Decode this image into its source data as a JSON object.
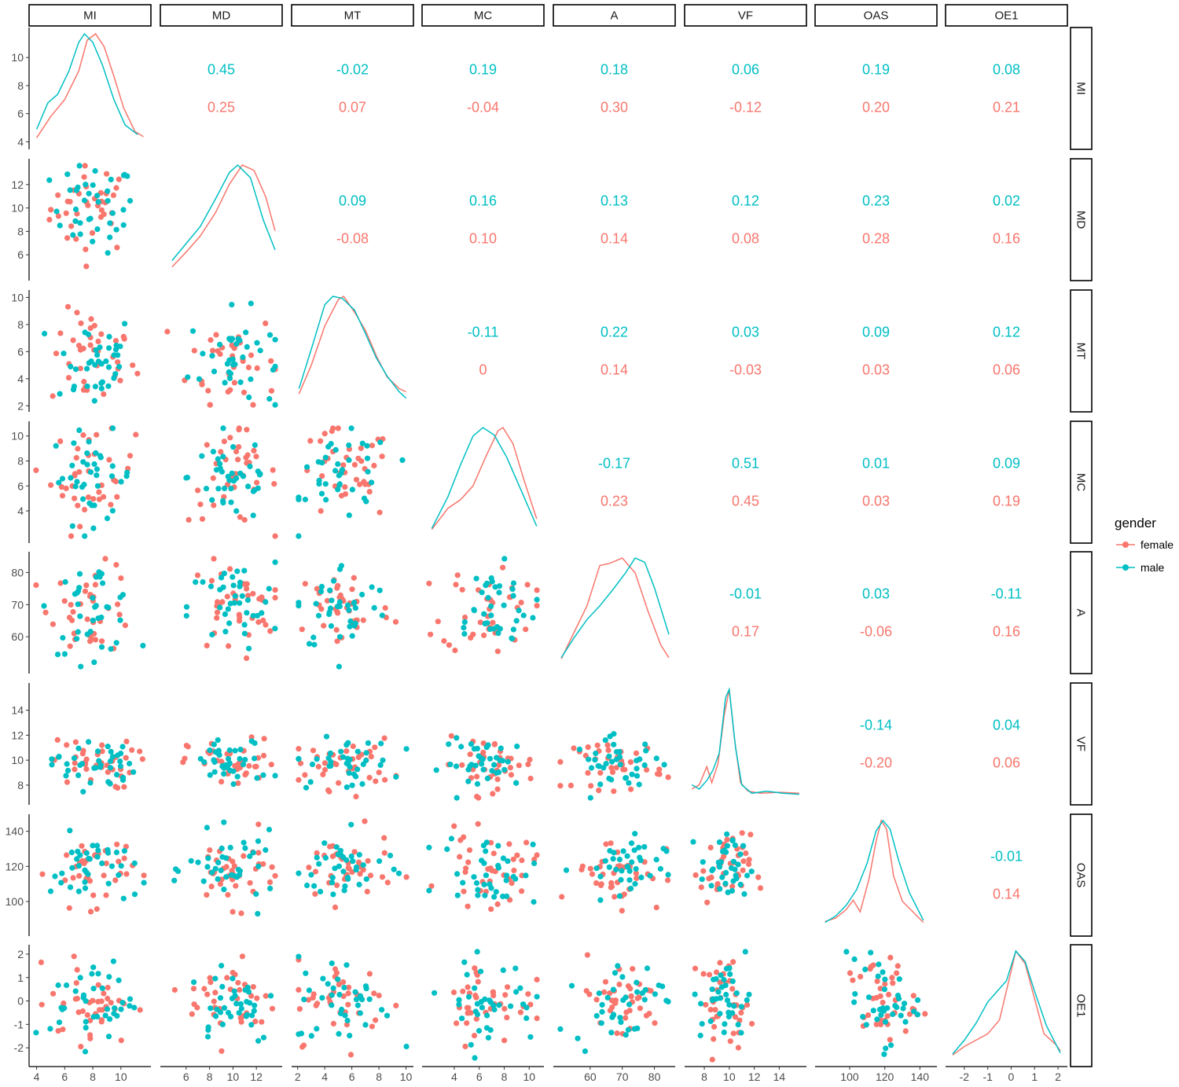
{
  "chart_data": {
    "type": "scatter",
    "variables": [
      "MI",
      "MD",
      "MT",
      "MC",
      "A",
      "VF",
      "OAS",
      "OE1"
    ],
    "groups": [
      {
        "name": "female",
        "color": "#F8766D"
      },
      {
        "name": "male",
        "color": "#00BFC4"
      }
    ],
    "legend": {
      "title": "gender",
      "labels": [
        "female",
        "male"
      ],
      "placement": "right"
    },
    "axes": {
      "MI": {
        "range": [
          3.8,
          11.8
        ],
        "ticks": [
          4,
          6,
          8,
          10
        ],
        "tick_labels": [
          "4",
          "6",
          "8",
          "10"
        ],
        "y_ticks": [
          4,
          6,
          8,
          10
        ],
        "y_tick_labels": [
          "4",
          "6",
          "8",
          "10"
        ]
      },
      "MD": {
        "range": [
          4.2,
          13.8
        ],
        "ticks": [
          6,
          8,
          10,
          12
        ],
        "tick_labels": [
          "6",
          "8",
          "10",
          "12"
        ],
        "y_ticks": [
          6,
          8,
          10,
          12
        ],
        "y_tick_labels": [
          "6",
          "8",
          "10",
          "12"
        ]
      },
      "MT": {
        "range": [
          1.9,
          10.2
        ],
        "ticks": [
          2,
          4,
          6,
          8,
          10
        ],
        "tick_labels": [
          "2",
          "4",
          "6",
          "8",
          "10"
        ],
        "y_ticks": [
          2,
          4,
          6,
          8,
          10
        ],
        "y_tick_labels": [
          "2",
          "4",
          "6",
          "8",
          "10"
        ]
      },
      "MC": {
        "range": [
          1.8,
          10.8
        ],
        "ticks": [
          4,
          6,
          8,
          10
        ],
        "tick_labels": [
          "4",
          "6",
          "8",
          "10"
        ],
        "y_ticks": [
          4,
          6,
          8,
          10
        ],
        "y_tick_labels": [
          "4",
          "6",
          "8",
          "10"
        ]
      },
      "A": {
        "range": [
          50,
          85
        ],
        "ticks": [
          60,
          70,
          80
        ],
        "tick_labels": [
          "60",
          "70",
          "80"
        ],
        "y_ticks": [
          60,
          70,
          80
        ],
        "y_tick_labels": [
          "60",
          "70",
          "80"
        ]
      },
      "VF": {
        "range": [
          6.8,
          15.8
        ],
        "ticks": [
          8,
          10,
          12,
          14
        ],
        "tick_labels": [
          "8",
          "10",
          "12",
          "14"
        ],
        "y_ticks": [
          8,
          10,
          12,
          14
        ],
        "y_tick_labels": [
          "8",
          "10",
          "12",
          "14"
        ]
      },
      "OAS": {
        "range": [
          83,
          147
        ],
        "ticks": [
          100,
          120,
          140
        ],
        "tick_labels": [
          "100",
          "120",
          "140"
        ],
        "y_ticks": [
          100,
          120,
          140
        ],
        "y_tick_labels": [
          "100",
          "120",
          "140"
        ]
      },
      "OE1": {
        "range": [
          -2.6,
          2.2
        ],
        "ticks": [
          -2,
          -1,
          0,
          1,
          2
        ],
        "tick_labels": [
          "-2",
          "-1",
          "0",
          "1",
          "2"
        ],
        "y_ticks": [
          -2,
          -1,
          0,
          1,
          2
        ],
        "y_tick_labels": [
          "-2",
          "-1",
          "0",
          "1",
          "2"
        ]
      }
    },
    "correlations": [
      {
        "row": "MI",
        "col": "MD",
        "male": "0.45",
        "female": "0.25"
      },
      {
        "row": "MI",
        "col": "MT",
        "male": "-0.02",
        "female": "0.07"
      },
      {
        "row": "MI",
        "col": "MC",
        "male": "0.19",
        "female": "-0.04"
      },
      {
        "row": "MI",
        "col": "A",
        "male": "0.18",
        "female": "0.30"
      },
      {
        "row": "MI",
        "col": "VF",
        "male": "0.06",
        "female": "-0.12"
      },
      {
        "row": "MI",
        "col": "OAS",
        "male": "0.19",
        "female": "0.20"
      },
      {
        "row": "MI",
        "col": "OE1",
        "male": "0.08",
        "female": "0.21"
      },
      {
        "row": "MD",
        "col": "MT",
        "male": "0.09",
        "female": "-0.08"
      },
      {
        "row": "MD",
        "col": "MC",
        "male": "0.16",
        "female": "0.10"
      },
      {
        "row": "MD",
        "col": "A",
        "male": "0.13",
        "female": "0.14"
      },
      {
        "row": "MD",
        "col": "VF",
        "male": "0.12",
        "female": "0.08"
      },
      {
        "row": "MD",
        "col": "OAS",
        "male": "0.23",
        "female": "0.28"
      },
      {
        "row": "MD",
        "col": "OE1",
        "male": "0.02",
        "female": "0.16"
      },
      {
        "row": "MT",
        "col": "MC",
        "male": "-0.11",
        "female": "0"
      },
      {
        "row": "MT",
        "col": "A",
        "male": "0.22",
        "female": "0.14"
      },
      {
        "row": "MT",
        "col": "VF",
        "male": "0.03",
        "female": "-0.03"
      },
      {
        "row": "MT",
        "col": "OAS",
        "male": "0.09",
        "female": "0.03"
      },
      {
        "row": "MT",
        "col": "OE1",
        "male": "0.12",
        "female": "0.06"
      },
      {
        "row": "MC",
        "col": "A",
        "male": "-0.17",
        "female": "0.23"
      },
      {
        "row": "MC",
        "col": "VF",
        "male": "0.51",
        "female": "0.45"
      },
      {
        "row": "MC",
        "col": "OAS",
        "male": "0.01",
        "female": "0.03"
      },
      {
        "row": "MC",
        "col": "OE1",
        "male": "0.09",
        "female": "0.19"
      },
      {
        "row": "A",
        "col": "VF",
        "male": "-0.01",
        "female": "0.17"
      },
      {
        "row": "A",
        "col": "OAS",
        "male": "0.03",
        "female": "-0.06"
      },
      {
        "row": "A",
        "col": "OE1",
        "male": "-0.11",
        "female": "0.16"
      },
      {
        "row": "VF",
        "col": "OAS",
        "male": "-0.14",
        "female": "-0.20"
      },
      {
        "row": "VF",
        "col": "OE1",
        "male": "0.04",
        "female": "0.06"
      },
      {
        "row": "OAS",
        "col": "OE1",
        "male": "-0.01",
        "female": "0.14"
      }
    ],
    "densities": {
      "MI": {
        "female": [
          [
            4.0,
            0.02
          ],
          [
            5.0,
            0.22
          ],
          [
            6.0,
            0.38
          ],
          [
            7.0,
            0.65
          ],
          [
            7.6,
            0.94
          ],
          [
            8.2,
            1.0
          ],
          [
            8.8,
            0.88
          ],
          [
            9.5,
            0.6
          ],
          [
            10.2,
            0.3
          ],
          [
            11.0,
            0.08
          ],
          [
            11.6,
            0.03
          ]
        ],
        "male": [
          [
            4.0,
            0.1
          ],
          [
            4.8,
            0.35
          ],
          [
            5.5,
            0.43
          ],
          [
            6.3,
            0.65
          ],
          [
            7.0,
            0.92
          ],
          [
            7.4,
            1.0
          ],
          [
            8.0,
            0.92
          ],
          [
            8.7,
            0.7
          ],
          [
            9.5,
            0.38
          ],
          [
            10.3,
            0.14
          ],
          [
            11.2,
            0.05
          ]
        ]
      },
      "MD": {
        "female": [
          [
            4.8,
            0.04
          ],
          [
            6,
            0.18
          ],
          [
            7.2,
            0.33
          ],
          [
            8.5,
            0.55
          ],
          [
            9.7,
            0.82
          ],
          [
            10.8,
            1.0
          ],
          [
            11.8,
            0.95
          ],
          [
            12.8,
            0.7
          ],
          [
            13.6,
            0.38
          ]
        ],
        "male": [
          [
            4.8,
            0.1
          ],
          [
            6,
            0.26
          ],
          [
            7.2,
            0.42
          ],
          [
            8.5,
            0.68
          ],
          [
            9.7,
            0.93
          ],
          [
            10.4,
            1.0
          ],
          [
            11.5,
            0.88
          ],
          [
            12.6,
            0.48
          ],
          [
            13.6,
            0.2
          ]
        ]
      },
      "MT": {
        "female": [
          [
            2.1,
            0.08
          ],
          [
            3,
            0.35
          ],
          [
            4,
            0.72
          ],
          [
            5,
            0.97
          ],
          [
            5.4,
            1.0
          ],
          [
            6.2,
            0.85
          ],
          [
            7,
            0.68
          ],
          [
            7.8,
            0.44
          ],
          [
            8.6,
            0.24
          ],
          [
            9.5,
            0.13
          ],
          [
            10,
            0.1
          ]
        ],
        "male": [
          [
            2.1,
            0.13
          ],
          [
            3,
            0.5
          ],
          [
            4,
            0.92
          ],
          [
            4.6,
            1.0
          ],
          [
            5.3,
            0.98
          ],
          [
            6.2,
            0.87
          ],
          [
            7,
            0.65
          ],
          [
            7.8,
            0.42
          ],
          [
            8.6,
            0.25
          ],
          [
            9.5,
            0.1
          ],
          [
            10,
            0.04
          ]
        ]
      },
      "MC": {
        "female": [
          [
            2.2,
            0.04
          ],
          [
            3.5,
            0.24
          ],
          [
            4.5,
            0.32
          ],
          [
            5.5,
            0.45
          ],
          [
            6.5,
            0.72
          ],
          [
            7.5,
            0.97
          ],
          [
            7.9,
            1.0
          ],
          [
            8.7,
            0.85
          ],
          [
            9.6,
            0.5
          ],
          [
            10.6,
            0.14
          ]
        ],
        "male": [
          [
            2.2,
            0.05
          ],
          [
            3.5,
            0.35
          ],
          [
            4.5,
            0.65
          ],
          [
            5.5,
            0.92
          ],
          [
            6.3,
            1.0
          ],
          [
            7.2,
            0.93
          ],
          [
            8.2,
            0.72
          ],
          [
            9.2,
            0.45
          ],
          [
            10.6,
            0.07
          ]
        ]
      },
      "A": {
        "female": [
          [
            51,
            0.05
          ],
          [
            55,
            0.3
          ],
          [
            59,
            0.55
          ],
          [
            63,
            0.93
          ],
          [
            66,
            0.95
          ],
          [
            70,
            1.0
          ],
          [
            74,
            0.86
          ],
          [
            78,
            0.5
          ],
          [
            82,
            0.18
          ],
          [
            84.5,
            0.06
          ]
        ],
        "male": [
          [
            51,
            0.06
          ],
          [
            55,
            0.25
          ],
          [
            59,
            0.42
          ],
          [
            63,
            0.55
          ],
          [
            67,
            0.7
          ],
          [
            71,
            0.86
          ],
          [
            74,
            1.0
          ],
          [
            77,
            0.96
          ],
          [
            80,
            0.72
          ],
          [
            84.5,
            0.28
          ]
        ]
      },
      "VF": {
        "female": [
          [
            7,
            0.06
          ],
          [
            7.6,
            0.1
          ],
          [
            8.2,
            0.27
          ],
          [
            8.6,
            0.12
          ],
          [
            9.1,
            0.3
          ],
          [
            9.6,
            0.76
          ],
          [
            10,
            1.0
          ],
          [
            10.4,
            0.55
          ],
          [
            10.9,
            0.12
          ],
          [
            11.5,
            0.04
          ],
          [
            12.5,
            0.02
          ],
          [
            14,
            0.03
          ],
          [
            15.6,
            0.02
          ]
        ],
        "male": [
          [
            7,
            0.1
          ],
          [
            7.6,
            0.06
          ],
          [
            8.2,
            0.14
          ],
          [
            8.7,
            0.24
          ],
          [
            9.2,
            0.4
          ],
          [
            9.7,
            0.92
          ],
          [
            10.0,
            1.0
          ],
          [
            10.5,
            0.45
          ],
          [
            11,
            0.1
          ],
          [
            11.8,
            0.02
          ],
          [
            13,
            0.04
          ],
          [
            14.3,
            0.02
          ],
          [
            15.6,
            0.01
          ]
        ]
      },
      "OAS": {
        "female": [
          [
            86,
            0.05
          ],
          [
            92,
            0.08
          ],
          [
            98,
            0.16
          ],
          [
            102,
            0.25
          ],
          [
            106,
            0.14
          ],
          [
            111,
            0.45
          ],
          [
            115,
            0.8
          ],
          [
            118,
            1.0
          ],
          [
            121,
            0.92
          ],
          [
            125,
            0.48
          ],
          [
            130,
            0.24
          ],
          [
            136,
            0.14
          ],
          [
            142,
            0.04
          ]
        ],
        "male": [
          [
            86,
            0.04
          ],
          [
            92,
            0.1
          ],
          [
            98,
            0.2
          ],
          [
            104,
            0.35
          ],
          [
            110,
            0.6
          ],
          [
            115,
            0.9
          ],
          [
            119,
            1.0
          ],
          [
            123,
            0.92
          ],
          [
            128,
            0.62
          ],
          [
            134,
            0.32
          ],
          [
            142,
            0.06
          ]
        ]
      },
      "OE1": {
        "female": [
          [
            -2.5,
            0.02
          ],
          [
            -2,
            0.1
          ],
          [
            -1.5,
            0.16
          ],
          [
            -1,
            0.22
          ],
          [
            -0.5,
            0.35
          ],
          [
            -0.1,
            0.72
          ],
          [
            0.2,
            1.0
          ],
          [
            0.6,
            0.88
          ],
          [
            1.0,
            0.55
          ],
          [
            1.4,
            0.22
          ],
          [
            1.9,
            0.12
          ],
          [
            2.1,
            0.06
          ]
        ],
        "male": [
          [
            -2.5,
            0.03
          ],
          [
            -2,
            0.16
          ],
          [
            -1.5,
            0.32
          ],
          [
            -1,
            0.52
          ],
          [
            -0.6,
            0.62
          ],
          [
            -0.2,
            0.72
          ],
          [
            0.2,
            1.0
          ],
          [
            0.6,
            0.9
          ],
          [
            1.0,
            0.62
          ],
          [
            1.5,
            0.3
          ],
          [
            2.1,
            0.04
          ]
        ]
      }
    },
    "grid": false
  }
}
